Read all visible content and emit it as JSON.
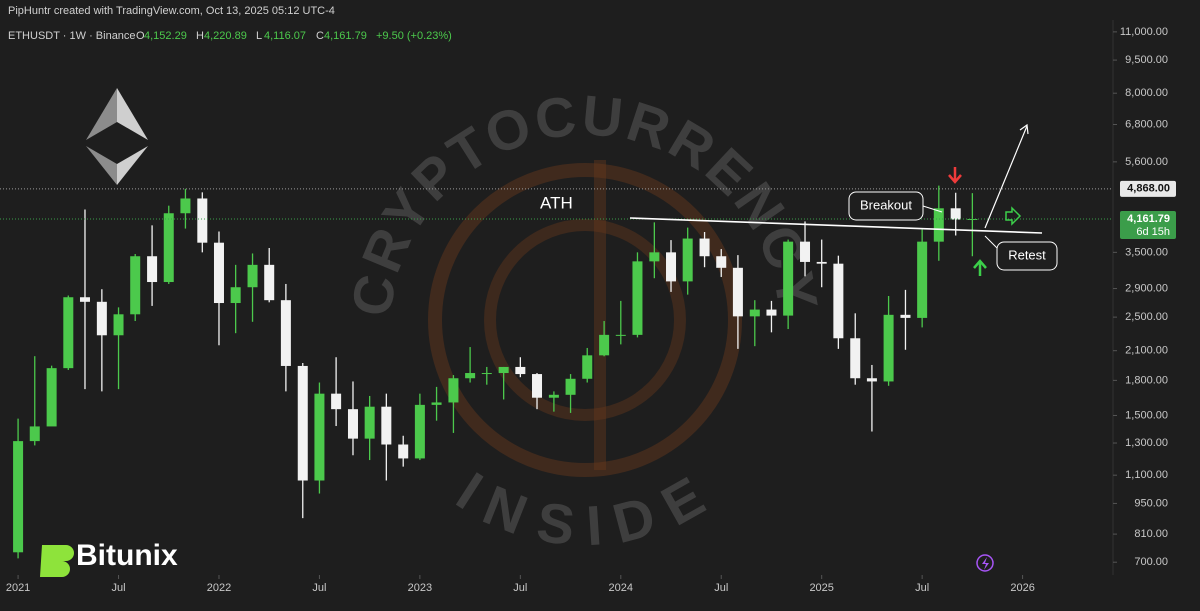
{
  "header": "PipHuntr created with TradingView.com, Oct 13, 2025 05:12 UTC-4",
  "chart_data": {
    "type": "candlestick",
    "symbol": "ETHUSDT · 1W · Binance",
    "ohlc": [
      {
        "key": "O",
        "value": "4,152.29"
      },
      {
        "key": "H",
        "value": "4,220.89"
      },
      {
        "key": "L",
        "value": "4,116.07"
      },
      {
        "key": "C",
        "value": "4,161.79"
      }
    ],
    "change": "+9.50 (+0.23%)",
    "up_color": "#4cc94c",
    "down_color": "#f2f2f2",
    "log_scale": true,
    "x": [
      2021,
      2021.083,
      2021.167,
      2021.25,
      2021.333,
      2021.417,
      2021.5,
      2021.583,
      2021.667,
      2021.75,
      2021.833,
      2021.917,
      2022,
      2022.083,
      2022.167,
      2022.25,
      2022.333,
      2022.417,
      2022.5,
      2022.583,
      2022.667,
      2022.75,
      2022.833,
      2022.917,
      2023,
      2023.083,
      2023.167,
      2023.25,
      2023.333,
      2023.417,
      2023.5,
      2023.583,
      2023.667,
      2023.75,
      2023.833,
      2023.917,
      2024,
      2024.083,
      2024.167,
      2024.25,
      2024.333,
      2024.417,
      2024.5,
      2024.583,
      2024.667,
      2024.75,
      2024.833,
      2024.917,
      2025,
      2025.083,
      2025.167,
      2025.25,
      2025.333,
      2025.417,
      2025.5,
      2025.583,
      2025.667,
      2025.75
    ],
    "open": [
      737,
      1313,
      1417,
      1918,
      2772,
      2707,
      2275,
      2537,
      3430,
      3000,
      4288,
      4630,
      3680,
      2690,
      2920,
      3280,
      2730,
      1940,
      1070,
      1680,
      1550,
      1330,
      1570,
      1290,
      1200,
      1585,
      1605,
      1820,
      1870,
      1870,
      1930,
      1860,
      1645,
      1670,
      1815,
      2050,
      2280,
      2280,
      3340,
      3500,
      3010,
      3760,
      3430,
      3230,
      2510,
      2600,
      2520,
      3700,
      3330,
      3300,
      2240,
      1820,
      1790,
      2530,
      2490,
      3700,
      4400,
      4150
    ],
    "high": [
      1476,
      2041,
      1943,
      2797,
      4372,
      2890,
      2630,
      3470,
      4027,
      4460,
      4868,
      4780,
      3900,
      3280,
      3480,
      3580,
      2970,
      1970,
      1780,
      2030,
      1790,
      1660,
      1680,
      1350,
      1680,
      1740,
      1850,
      2140,
      1930,
      1930,
      2030,
      1870,
      1700,
      1860,
      2130,
      2450,
      2720,
      3500,
      4090,
      3730,
      3980,
      3890,
      3560,
      3450,
      2730,
      2720,
      3740,
      4110,
      3740,
      3440,
      2550,
      1950,
      2790,
      2880,
      3940,
      4950,
      4770,
      4760
    ],
    "low": [
      714,
      1284,
      1420,
      1900,
      1720,
      1700,
      1720,
      2450,
      2650,
      2970,
      3960,
      3500,
      2160,
      2300,
      2440,
      2700,
      1700,
      880,
      1000,
      1420,
      1220,
      1190,
      1070,
      1150,
      1190,
      1460,
      1370,
      1780,
      1760,
      1630,
      1830,
      1550,
      1530,
      1520,
      1780,
      2040,
      2170,
      2250,
      3060,
      2850,
      2810,
      3240,
      3080,
      2120,
      2150,
      2310,
      2350,
      3090,
      2920,
      2120,
      1760,
      1380,
      1750,
      2110,
      2370,
      3350,
      3820,
      3430
    ],
    "close": [
      1313,
      1417,
      1918,
      2772,
      2707,
      2275,
      2537,
      3430,
      3000,
      4288,
      4630,
      3680,
      2690,
      2920,
      3280,
      2730,
      1940,
      1070,
      1680,
      1550,
      1330,
      1570,
      1290,
      1200,
      1585,
      1605,
      1820,
      1870,
      1870,
      1930,
      1860,
      1645,
      1670,
      1815,
      2050,
      2280,
      2280,
      3340,
      3500,
      3010,
      3760,
      3430,
      3230,
      2510,
      2600,
      2520,
      3700,
      3330,
      3300,
      2240,
      1820,
      1790,
      2530,
      2490,
      3700,
      4400,
      4150,
      4161.79
    ],
    "xlim": [
      2020.91,
      2026.45
    ],
    "xticks": [
      {
        "value": 2021,
        "label": "2021"
      },
      {
        "value": 2021.5,
        "label": "Jul"
      },
      {
        "value": 2022,
        "label": "2022"
      },
      {
        "value": 2022.5,
        "label": "Jul"
      },
      {
        "value": 2023,
        "label": "2023"
      },
      {
        "value": 2023.5,
        "label": "Jul"
      },
      {
        "value": 2024,
        "label": "2024"
      },
      {
        "value": 2024.5,
        "label": "Jul"
      },
      {
        "value": 2025,
        "label": "2025"
      },
      {
        "value": 2025.5,
        "label": "Jul"
      },
      {
        "value": 2026,
        "label": "2026"
      }
    ],
    "ylim": [
      655,
      11700
    ],
    "yticks": [
      {
        "value": 700,
        "label": "700.00"
      },
      {
        "value": 810,
        "label": "810.00"
      },
      {
        "value": 950,
        "label": "950.00"
      },
      {
        "value": 1100,
        "label": "1,100.00"
      },
      {
        "value": 1300,
        "label": "1,300.00"
      },
      {
        "value": 1500,
        "label": "1,500.00"
      },
      {
        "value": 1800,
        "label": "1,800.00"
      },
      {
        "value": 2100,
        "label": "2,100.00"
      },
      {
        "value": 2500,
        "label": "2,500.00"
      },
      {
        "value": 2900,
        "label": "2,900.00"
      },
      {
        "value": 3500,
        "label": "3,500.00"
      },
      {
        "value": 5600,
        "label": "5,600.00"
      },
      {
        "value": 6800,
        "label": "6,800.00"
      },
      {
        "value": 8000,
        "label": "8,000.00"
      },
      {
        "value": 9500,
        "label": "9,500.00"
      },
      {
        "value": 11000,
        "label": "11,000.00"
      }
    ],
    "price_lines": [
      {
        "value": 4868,
        "label": "4,868.00",
        "color": "#9a9a9a"
      },
      {
        "value": 4161.79,
        "label": "4,161.79",
        "color": "#3b9d4a",
        "countdown": "6d 15h"
      }
    ],
    "annotations": {
      "ath": "ATH",
      "breakout": "Breakout",
      "retest": "Retest"
    },
    "watermark": {
      "top": "CRYPTOCURRENCY",
      "bottom": "INSIDE"
    },
    "brand": "Bitunix"
  }
}
